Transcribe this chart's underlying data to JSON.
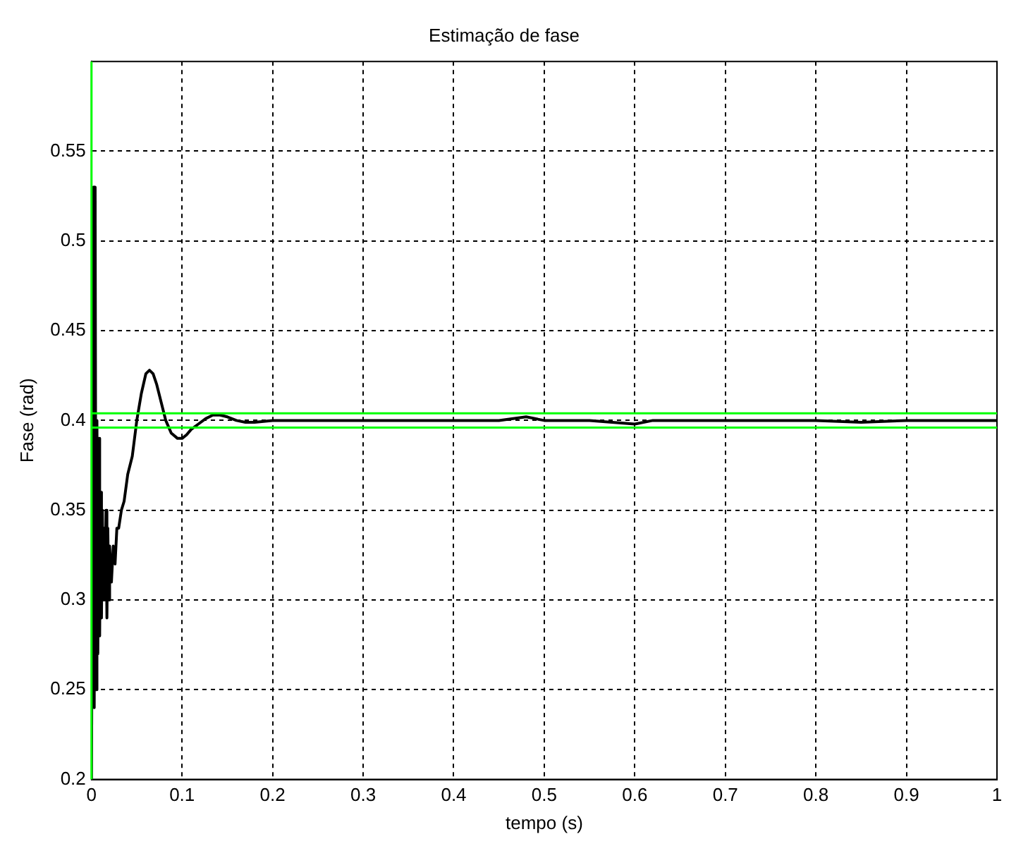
{
  "chart_data": {
    "type": "line",
    "title": "Estimação de fase",
    "xlabel": "tempo (s)",
    "ylabel": "Fase (rad)",
    "xlim": [
      0,
      1
    ],
    "xticks": [
      0,
      0.1,
      0.2,
      0.3,
      0.4,
      0.5,
      0.6,
      0.7,
      0.8,
      0.9,
      1
    ],
    "ylim": [
      0.2,
      0.6
    ],
    "yticks": [
      0.2,
      0.25,
      0.3,
      0.35,
      0.4,
      0.45,
      0.5,
      0.55
    ],
    "grid": true,
    "line_style": "solid",
    "series": [
      {
        "color": "#000000",
        "x": [
          0,
          0.002,
          0.003,
          0.004,
          0.005,
          0.006,
          0.007,
          0.008,
          0.009,
          0.01,
          0.011,
          0.012,
          0.013,
          0.014,
          0.015,
          0.016,
          0.017,
          0.018,
          0.019,
          0.02,
          0.022,
          0.024,
          0.026,
          0.028,
          0.03,
          0.033,
          0.036,
          0.04,
          0.045,
          0.05,
          0.055,
          0.06,
          0.064,
          0.068,
          0.072,
          0.077,
          0.082,
          0.088,
          0.095,
          0.1,
          0.105,
          0.11,
          0.118,
          0.126,
          0.134,
          0.142,
          0.15,
          0.16,
          0.17,
          0.18,
          0.2,
          0.25,
          0.3,
          0.35,
          0.4,
          0.45,
          0.48,
          0.5,
          0.55,
          0.6,
          0.62,
          0.65,
          0.7,
          0.75,
          0.8,
          0.85,
          0.9,
          0.95,
          1
        ],
        "values": [
          0.2,
          0.53,
          0.24,
          0.53,
          0.25,
          0.4,
          0.27,
          0.39,
          0.28,
          0.36,
          0.29,
          0.35,
          0.3,
          0.34,
          0.3,
          0.35,
          0.29,
          0.34,
          0.3,
          0.33,
          0.31,
          0.33,
          0.32,
          0.34,
          0.34,
          0.35,
          0.355,
          0.37,
          0.38,
          0.4,
          0.415,
          0.426,
          0.428,
          0.426,
          0.42,
          0.41,
          0.4,
          0.393,
          0.39,
          0.39,
          0.392,
          0.395,
          0.398,
          0.401,
          0.403,
          0.403,
          0.402,
          0.4,
          0.399,
          0.399,
          0.4,
          0.4,
          0.4,
          0.4,
          0.4,
          0.4,
          0.402,
          0.4,
          0.4,
          0.398,
          0.4,
          0.4,
          0.4,
          0.4,
          0.4,
          0.399,
          0.4,
          0.4,
          0.4
        ]
      }
    ],
    "ref_lines": [
      {
        "axis": "y",
        "value": 0.404,
        "color": "#00ff00"
      },
      {
        "axis": "y",
        "value": 0.396,
        "color": "#00ff00"
      },
      {
        "axis": "x",
        "value": 0,
        "color": "#00ff00"
      }
    ]
  }
}
